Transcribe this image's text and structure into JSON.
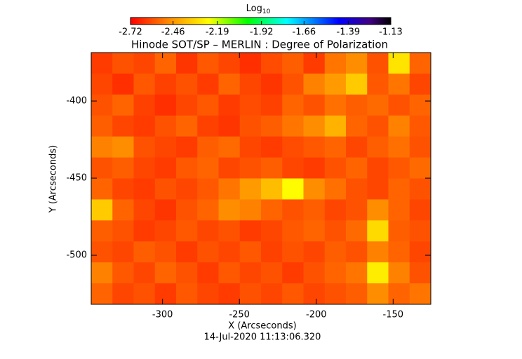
{
  "chart_data": {
    "type": "heatmap",
    "title": "Hinode SOT/SP – MERLIN : Degree of Polarization",
    "colorbar_label": "Log",
    "colorbar_label_subscript": "10",
    "clim": [
      -2.72,
      -1.13
    ],
    "cticks": [
      -2.72,
      -2.46,
      -2.19,
      -1.92,
      -1.66,
      -1.39,
      -1.13
    ],
    "x_label": "X (Arcseconds)",
    "y_label": "Y (Arcseconds)",
    "footnote": "14-Jul-2020 11:13:06.320",
    "xlim": [
      -346.4,
      -125.5
    ],
    "ylim": [
      -531.8,
      -368.6
    ],
    "xticks": [
      -300,
      -250,
      -200,
      -150
    ],
    "yticks": [
      -400,
      -450,
      -500
    ],
    "z": [
      [
        -2.62,
        -2.58,
        -2.6,
        -2.55,
        -2.63,
        -2.57,
        -2.6,
        -2.64,
        -2.59,
        -2.56,
        -2.62,
        -2.52,
        -2.48,
        -2.58,
        -2.3,
        -2.55
      ],
      [
        -2.6,
        -2.64,
        -2.57,
        -2.61,
        -2.58,
        -2.62,
        -2.55,
        -2.6,
        -2.63,
        -2.58,
        -2.5,
        -2.45,
        -2.35,
        -2.57,
        -2.52,
        -2.6
      ],
      [
        -2.58,
        -2.55,
        -2.61,
        -2.64,
        -2.6,
        -2.57,
        -2.62,
        -2.59,
        -2.61,
        -2.55,
        -2.58,
        -2.53,
        -2.56,
        -2.54,
        -2.58,
        -2.55
      ],
      [
        -2.56,
        -2.6,
        -2.62,
        -2.58,
        -2.55,
        -2.61,
        -2.63,
        -2.58,
        -2.56,
        -2.52,
        -2.48,
        -2.4,
        -2.55,
        -2.58,
        -2.5,
        -2.57
      ],
      [
        -2.5,
        -2.48,
        -2.58,
        -2.6,
        -2.62,
        -2.56,
        -2.54,
        -2.6,
        -2.62,
        -2.59,
        -2.57,
        -2.55,
        -2.6,
        -2.56,
        -2.53,
        -2.58
      ],
      [
        -2.58,
        -2.56,
        -2.6,
        -2.62,
        -2.57,
        -2.55,
        -2.6,
        -2.58,
        -2.56,
        -2.6,
        -2.62,
        -2.58,
        -2.55,
        -2.6,
        -2.57,
        -2.54
      ],
      [
        -2.55,
        -2.6,
        -2.62,
        -2.58,
        -2.6,
        -2.57,
        -2.52,
        -2.45,
        -2.38,
        -2.25,
        -2.48,
        -2.53,
        -2.58,
        -2.6,
        -2.55,
        -2.58
      ],
      [
        -2.35,
        -2.55,
        -2.6,
        -2.63,
        -2.58,
        -2.55,
        -2.48,
        -2.5,
        -2.55,
        -2.58,
        -2.56,
        -2.6,
        -2.58,
        -2.48,
        -2.55,
        -2.6
      ],
      [
        -2.56,
        -2.58,
        -2.62,
        -2.6,
        -2.57,
        -2.6,
        -2.58,
        -2.62,
        -2.6,
        -2.57,
        -2.55,
        -2.58,
        -2.54,
        -2.32,
        -2.56,
        -2.58
      ],
      [
        -2.58,
        -2.6,
        -2.56,
        -2.58,
        -2.62,
        -2.58,
        -2.6,
        -2.57,
        -2.61,
        -2.58,
        -2.6,
        -2.56,
        -2.58,
        -2.5,
        -2.55,
        -2.6
      ],
      [
        -2.5,
        -2.57,
        -2.6,
        -2.55,
        -2.58,
        -2.62,
        -2.57,
        -2.6,
        -2.58,
        -2.62,
        -2.58,
        -2.55,
        -2.52,
        -2.28,
        -2.5,
        -2.58
      ],
      [
        -2.55,
        -2.6,
        -2.58,
        -2.62,
        -2.57,
        -2.6,
        -2.62,
        -2.58,
        -2.6,
        -2.57,
        -2.6,
        -2.58,
        -2.56,
        -2.48,
        -2.55,
        -2.52
      ]
    ]
  }
}
